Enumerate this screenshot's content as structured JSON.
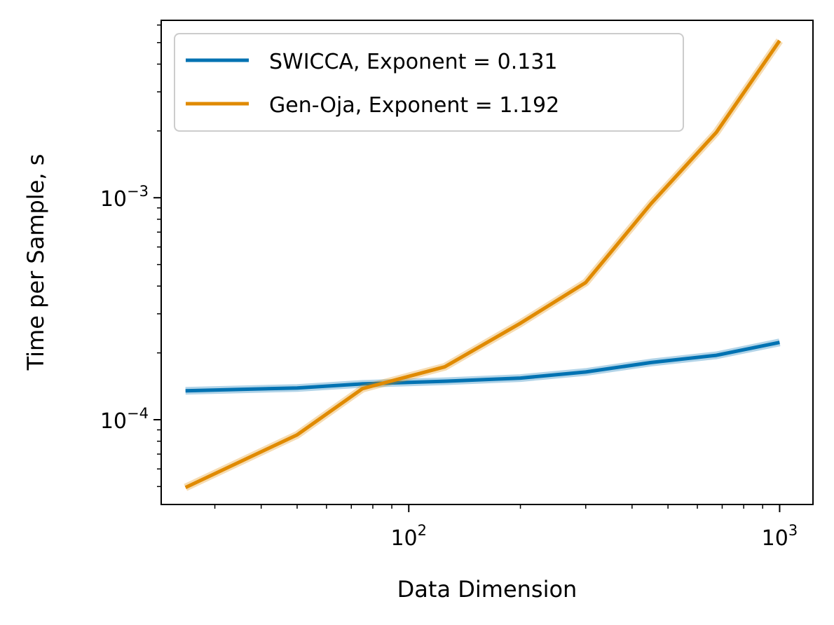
{
  "chart_data": {
    "type": "line",
    "xscale": "log",
    "yscale": "log",
    "xlabel": "Data Dimension",
    "ylabel": "Time per Sample, s",
    "xlim": [
      21.5,
      1230
    ],
    "ylim": [
      4.15e-05,
      0.0063
    ],
    "x_major_ticks": [
      {
        "value": 100,
        "base": "10",
        "exp": "2"
      },
      {
        "value": 1000,
        "base": "10",
        "exp": "3"
      }
    ],
    "y_major_ticks": [
      {
        "value": 0.0001,
        "base": "10",
        "exp": "−4"
      },
      {
        "value": 0.001,
        "base": "10",
        "exp": "−3"
      }
    ],
    "legend_position": "top-left",
    "series": [
      {
        "name": "SWICCA, Exponent = 0.131",
        "color": "#0072b2",
        "x": [
          25,
          50,
          75,
          125,
          200,
          300,
          450,
          675,
          1000
        ],
        "y": [
          0.000135,
          0.000139,
          0.000145,
          0.000149,
          0.000154,
          0.000164,
          0.000181,
          0.000195,
          0.000223
        ]
      },
      {
        "name": "Gen-Oja, Exponent = 1.192",
        "color": "#e08a00",
        "x": [
          25,
          50,
          75,
          125,
          200,
          300,
          450,
          675,
          1000
        ],
        "y": [
          4.95e-05,
          8.55e-05,
          0.000138,
          0.000173,
          0.000272,
          0.000415,
          0.00094,
          0.00197,
          0.0051
        ]
      }
    ]
  }
}
